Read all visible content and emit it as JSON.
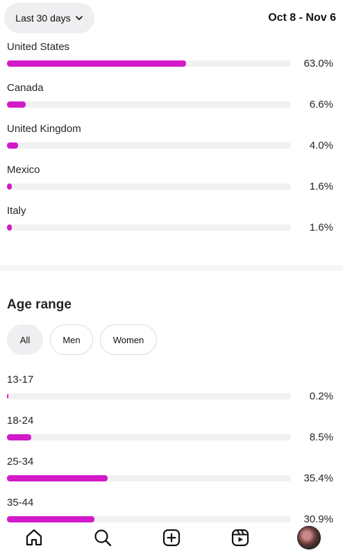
{
  "header": {
    "range_label": "Last 30 days",
    "date_range": "Oct 8 - Nov 6"
  },
  "locations": [
    {
      "name": "United States",
      "percent_label": "63.0%",
      "value": 63.0
    },
    {
      "name": "Canada",
      "percent_label": "6.6%",
      "value": 6.6
    },
    {
      "name": "United Kingdom",
      "percent_label": "4.0%",
      "value": 4.0
    },
    {
      "name": "Mexico",
      "percent_label": "1.6%",
      "value": 1.6
    },
    {
      "name": "Italy",
      "percent_label": "1.6%",
      "value": 1.6
    }
  ],
  "age": {
    "title": "Age range",
    "filters": [
      {
        "label": "All",
        "active": true
      },
      {
        "label": "Men",
        "active": false
      },
      {
        "label": "Women",
        "active": false
      }
    ],
    "rows": [
      {
        "name": "13-17",
        "percent_label": "0.2%",
        "value": 0.2
      },
      {
        "name": "18-24",
        "percent_label": "8.5%",
        "value": 8.5
      },
      {
        "name": "25-34",
        "percent_label": "35.4%",
        "value": 35.4
      },
      {
        "name": "35-44",
        "percent_label": "30.9%",
        "value": 30.9
      }
    ]
  },
  "colors": {
    "accent": "#d21ac9",
    "track": "#f1f1f3"
  },
  "nav": [
    "home-icon",
    "search-icon",
    "create-icon",
    "reels-icon",
    "profile-avatar"
  ]
}
